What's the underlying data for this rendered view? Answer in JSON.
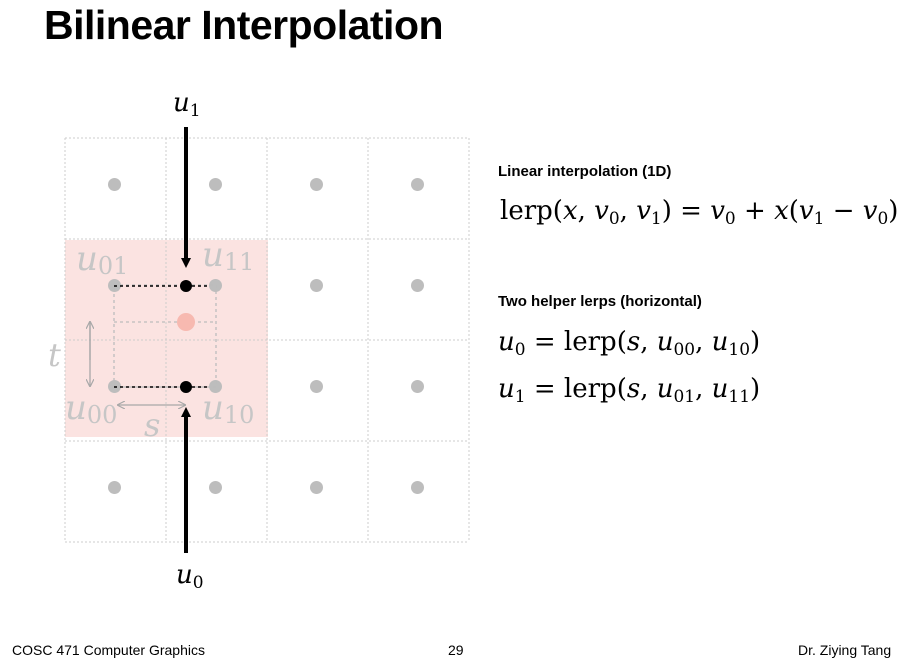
{
  "slide": {
    "title": "Bilinear Interpolation"
  },
  "diagram": {
    "grid_rows": 4,
    "grid_cols": 4,
    "highlight_cell": {
      "row": 1,
      "col": 0
    },
    "labels": {
      "u1_top": "u",
      "u1_top_sub": "1",
      "u0_bottom": "u",
      "u0_bottom_sub": "0",
      "u01": "u",
      "u01_sub": "01",
      "u11": "u",
      "u11_sub": "11",
      "u00": "u",
      "u00_sub": "00",
      "u10": "u",
      "u10_sub": "10",
      "t": "t",
      "s": "s"
    },
    "colors": {
      "grid_line": "#cccccc",
      "sample_dot": "#bdbdbd",
      "highlight_fill": "#fbe3e1",
      "interp_dot": "#f7b9b0",
      "arrow": "#000000",
      "faded_label": "#c6c6c6"
    }
  },
  "text": {
    "linear_heading": "Linear interpolation (1D)",
    "helper_heading": "Two helper lerps (horizontal)",
    "eq_lerp": {
      "fn": "lerp",
      "open": "(",
      "x": "x",
      "comma": ", ",
      "v": "v",
      "sub0": "0",
      "sub1": "1",
      "close": ")",
      "eq": " = ",
      "plus": " + ",
      "minus": " − "
    },
    "eq_u0": {
      "u": "u",
      "sub": "0",
      "eq": " = ",
      "fn": "lerp",
      "s": "s",
      "a_sub": "00",
      "b_sub": "10"
    },
    "eq_u1": {
      "u": "u",
      "sub": "1",
      "eq": " = ",
      "fn": "lerp",
      "s": "s",
      "a_sub": "01",
      "b_sub": "11"
    }
  },
  "footer": {
    "left": "COSC 471 Computer Graphics",
    "center": "29",
    "right": "Dr. Ziying Tang"
  }
}
